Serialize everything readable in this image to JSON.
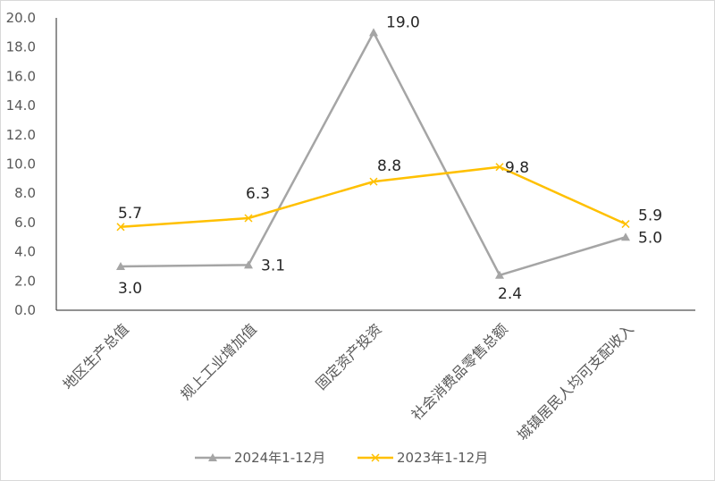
{
  "chart_data": {
    "type": "line",
    "title": "",
    "xlabel": "",
    "ylabel": "",
    "ylim": [
      0,
      20
    ],
    "yticks": [
      "0.0",
      "2.0",
      "4.0",
      "6.0",
      "8.0",
      "10.0",
      "12.0",
      "14.0",
      "16.0",
      "18.0",
      "20.0"
    ],
    "categories": [
      "地区生产总值",
      "规上工业增加值",
      "固定资产投资",
      "社会消费品零售总额",
      "城镇居民人均可支配收入"
    ],
    "grid": false,
    "legend_position": "bottom",
    "series": [
      {
        "name": "2024年1-12月",
        "values": [
          3.0,
          3.1,
          19.0,
          2.4,
          5.0
        ],
        "labels": [
          "3.0",
          "3.1",
          "19.0",
          "2.4",
          "5.0"
        ],
        "color": "#a5a5a5",
        "marker": "triangle"
      },
      {
        "name": "2023年1-12月",
        "values": [
          5.7,
          6.3,
          8.8,
          9.8,
          5.9
        ],
        "labels": [
          "5.7",
          "6.3",
          "8.8",
          "9.8",
          "5.9"
        ],
        "color": "#ffc000",
        "marker": "x"
      }
    ]
  }
}
